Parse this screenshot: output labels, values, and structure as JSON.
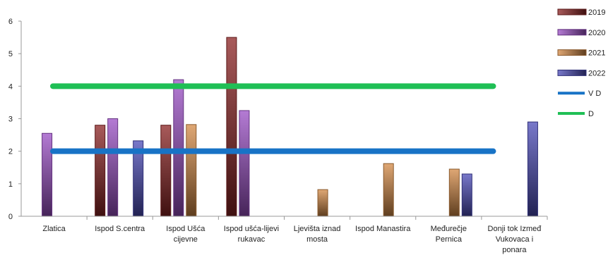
{
  "chart_data": {
    "type": "bar",
    "categories": [
      [
        "Zlatica"
      ],
      [
        "Ispod S.centra"
      ],
      [
        "Ispod Ušća",
        "cijevne"
      ],
      [
        "Ispod ušća-lijevi",
        "rukavac"
      ],
      [
        "Ljevišta iznad",
        "mosta"
      ],
      [
        "Ispod Manastira"
      ],
      [
        "Međurečje",
        "Pernica"
      ],
      [
        "Donji tok Izmeđ",
        "Vukovaca i",
        "ponara"
      ]
    ],
    "series": [
      {
        "name": "2019",
        "color": "#8b2323",
        "values": [
          null,
          2.8,
          2.8,
          5.5,
          null,
          null,
          null,
          null
        ]
      },
      {
        "name": "2020",
        "color": "#9b4fc6",
        "values": [
          2.55,
          3.0,
          4.2,
          3.25,
          null,
          null,
          null,
          null
        ]
      },
      {
        "name": "2021",
        "color": "#d48a45",
        "values": [
          null,
          null,
          2.82,
          null,
          0.82,
          1.62,
          1.45,
          null
        ]
      },
      {
        "name": "2022",
        "color": "#4b4bb8",
        "values": [
          null,
          2.32,
          null,
          null,
          null,
          null,
          1.3,
          2.9
        ]
      }
    ],
    "reference_lines": [
      {
        "name": "V D",
        "value": 2,
        "color": "#1873c6"
      },
      {
        "name": "D",
        "value": 4,
        "color": "#1fbf55"
      }
    ],
    "yticks": [
      "0",
      "1",
      "2",
      "3",
      "4",
      "5",
      "6"
    ],
    "ylim": [
      0,
      6
    ],
    "grid": false,
    "legend_position": "right"
  }
}
